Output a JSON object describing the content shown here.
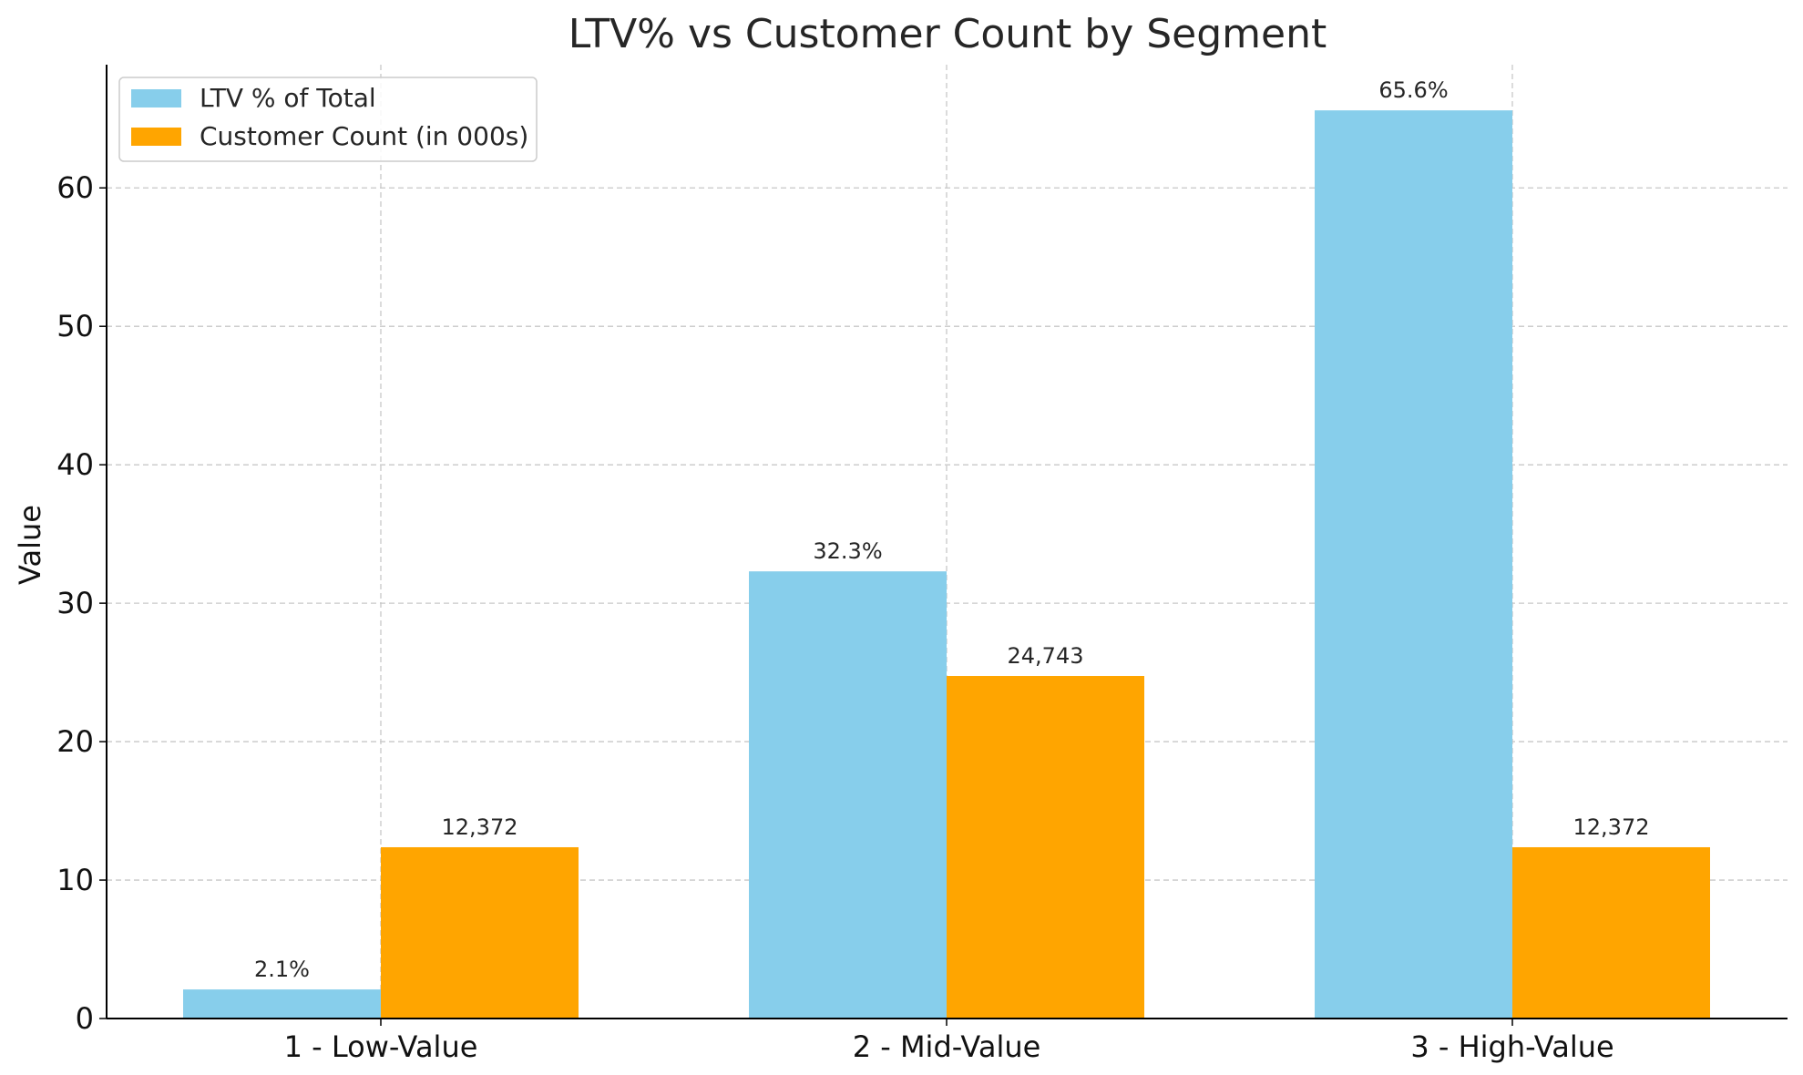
{
  "chart_data": {
    "type": "bar",
    "title": "LTV% vs Customer Count by Segment",
    "xlabel": "",
    "ylabel": "Value",
    "categories": [
      "1 - Low-Value",
      "2 - Mid-Value",
      "3 - High-Value"
    ],
    "series": [
      {
        "name": "LTV % of Total",
        "color": "#87CEEB",
        "values": [
          2.1,
          32.3,
          65.6
        ],
        "data_labels": [
          "2.1%",
          "32.3%",
          "65.6%"
        ]
      },
      {
        "name": "Customer Count (in 000s)",
        "color": "#FFA500",
        "values": [
          12.372,
          24.743,
          12.372
        ],
        "data_labels": [
          "12,372",
          "24,743",
          "12,372"
        ]
      }
    ],
    "ylim": [
      0,
      68.9
    ],
    "yticks": [
      0,
      10,
      20,
      30,
      40,
      50,
      60
    ],
    "ytick_labels": [
      "0",
      "10",
      "20",
      "30",
      "40",
      "50",
      "60"
    ],
    "grid": true,
    "legend_position": "top-left"
  }
}
